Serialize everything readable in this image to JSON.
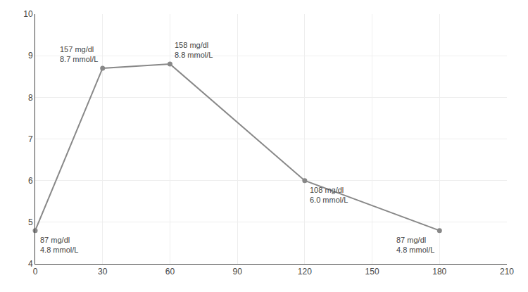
{
  "chart_data": {
    "type": "line",
    "x": [
      0,
      30,
      60,
      120,
      180
    ],
    "values": [
      4.8,
      8.7,
      8.8,
      6.0,
      4.8
    ],
    "color": "#888888",
    "marker": "circle",
    "annotations": [
      {
        "x": 0,
        "y": 4.8,
        "text": "87 mg/dl\n4.8 mmol/L"
      },
      {
        "x": 30,
        "y": 8.7,
        "text": "157 mg/dl\n8.7 mmol/L"
      },
      {
        "x": 60,
        "y": 8.8,
        "text": "158 mg/dl\n8.8 mmol/L"
      },
      {
        "x": 120,
        "y": 6.0,
        "text": "108 mg/dl\n6.0 mmol/L"
      },
      {
        "x": 180,
        "y": 4.8,
        "text": "87 mg/dl\n4.8 mmol/L"
      }
    ],
    "xlim": [
      0,
      210
    ],
    "ylim": [
      4,
      10
    ],
    "xticks": [
      0,
      30,
      60,
      90,
      120,
      150,
      180,
      210
    ],
    "yticks": [
      4,
      5,
      6,
      7,
      8,
      9,
      10
    ],
    "grid": true
  }
}
